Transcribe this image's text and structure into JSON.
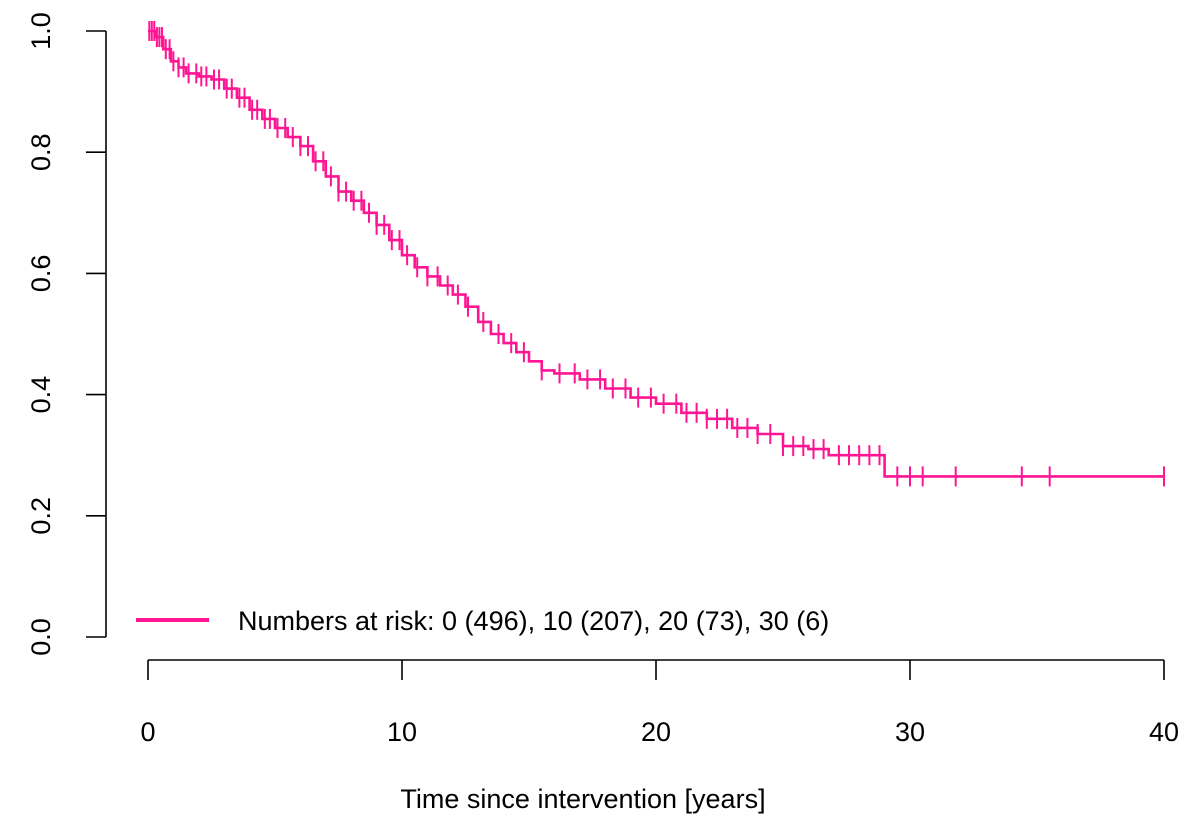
{
  "chart_data": {
    "type": "line",
    "subtype": "kaplan-meier survival curve",
    "color": "#ff1493",
    "xlabel": "Time since intervention [years]",
    "ylabel": "",
    "xlim": [
      0,
      40
    ],
    "ylim": [
      0,
      1.0
    ],
    "x_ticks": [
      "0",
      "10",
      "20",
      "30",
      "40"
    ],
    "y_ticks": [
      "0.0",
      "0.2",
      "0.4",
      "0.6",
      "0.8",
      "1.0"
    ],
    "grid": false,
    "legend_position": "bottom-left",
    "legend": "Numbers at risk: 0 (496), 10 (207), 20 (73), 30 (6)",
    "series": [
      {
        "points": [
          [
            0,
            1.0
          ],
          [
            0.3,
            0.99
          ],
          [
            0.6,
            0.97
          ],
          [
            0.9,
            0.95
          ],
          [
            1.2,
            0.94
          ],
          [
            1.5,
            0.93
          ],
          [
            2.0,
            0.925
          ],
          [
            2.5,
            0.92
          ],
          [
            3.0,
            0.905
          ],
          [
            3.5,
            0.89
          ],
          [
            4.0,
            0.87
          ],
          [
            4.5,
            0.855
          ],
          [
            5.0,
            0.84
          ],
          [
            5.5,
            0.825
          ],
          [
            6.0,
            0.81
          ],
          [
            6.5,
            0.785
          ],
          [
            7.0,
            0.76
          ],
          [
            7.5,
            0.735
          ],
          [
            8.0,
            0.72
          ],
          [
            8.5,
            0.7
          ],
          [
            9.0,
            0.68
          ],
          [
            9.5,
            0.655
          ],
          [
            10.0,
            0.63
          ],
          [
            10.5,
            0.61
          ],
          [
            11.0,
            0.595
          ],
          [
            11.5,
            0.58
          ],
          [
            12.0,
            0.565
          ],
          [
            12.5,
            0.545
          ],
          [
            13.0,
            0.52
          ],
          [
            13.5,
            0.5
          ],
          [
            14.0,
            0.485
          ],
          [
            14.5,
            0.47
          ],
          [
            15.0,
            0.455
          ],
          [
            15.5,
            0.44
          ],
          [
            16.0,
            0.435
          ],
          [
            17.0,
            0.425
          ],
          [
            18.0,
            0.41
          ],
          [
            19.0,
            0.395
          ],
          [
            20.0,
            0.385
          ],
          [
            21.0,
            0.37
          ],
          [
            22.0,
            0.36
          ],
          [
            23.0,
            0.345
          ],
          [
            24.0,
            0.335
          ],
          [
            25.0,
            0.315
          ],
          [
            26.0,
            0.31
          ],
          [
            26.8,
            0.3
          ],
          [
            29.0,
            0.3
          ],
          [
            29.0,
            0.265
          ],
          [
            40.0,
            0.265
          ]
        ],
        "censored_x": [
          0.05,
          0.15,
          0.25,
          0.35,
          0.45,
          0.55,
          0.7,
          0.85,
          1.0,
          1.2,
          1.4,
          1.6,
          1.9,
          2.1,
          2.3,
          2.6,
          2.8,
          3.1,
          3.3,
          3.6,
          3.8,
          4.1,
          4.3,
          4.6,
          4.8,
          5.1,
          5.4,
          5.7,
          6.0,
          6.3,
          6.6,
          6.9,
          7.2,
          7.5,
          7.8,
          8.1,
          8.4,
          8.7,
          9.0,
          9.3,
          9.6,
          9.9,
          10.2,
          10.6,
          11.0,
          11.4,
          11.8,
          12.2,
          12.6,
          13.2,
          13.8,
          14.3,
          14.8,
          15.5,
          16.2,
          16.8,
          17.3,
          17.8,
          18.3,
          18.8,
          19.3,
          19.8,
          20.3,
          20.8,
          21.2,
          21.6,
          22.0,
          22.4,
          22.8,
          23.2,
          23.6,
          24.0,
          24.5,
          25.0,
          25.4,
          25.8,
          26.2,
          26.6,
          27.2,
          27.6,
          28.0,
          28.4,
          28.8,
          29.5,
          30.0,
          30.5,
          31.8,
          34.4,
          35.5,
          40.0
        ]
      }
    ]
  }
}
